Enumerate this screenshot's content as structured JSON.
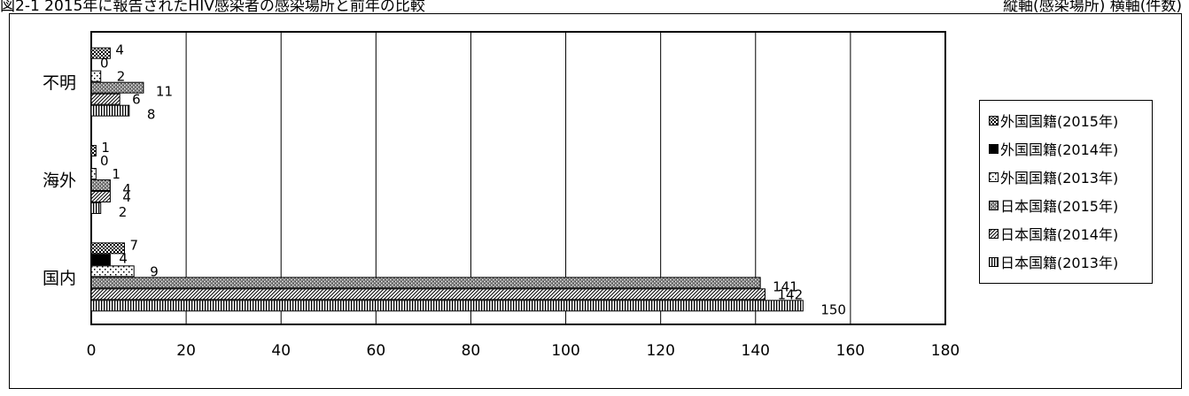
{
  "header": {
    "left": "図2-1 2015年に報告されたHIV感染者の感染場所と前年の比較",
    "right": "縦軸(感染場所) 横軸(件数)"
  },
  "chart_data": {
    "type": "bar",
    "orientation": "horizontal",
    "categories": [
      "不明",
      "海外",
      "国内"
    ],
    "series": [
      {
        "name": "外国国籍(2015年)",
        "values": [
          4,
          1,
          7
        ],
        "pattern": "crosshatch"
      },
      {
        "name": "外国国籍(2014年)",
        "values": [
          0,
          0,
          4
        ],
        "pattern": "solid-black"
      },
      {
        "name": "外国国籍(2013年)",
        "values": [
          2,
          1,
          9
        ],
        "pattern": "dotted"
      },
      {
        "name": "日本国籍(2015年)",
        "values": [
          11,
          4,
          141
        ],
        "pattern": "gray-stipple"
      },
      {
        "name": "日本国籍(2014年)",
        "values": [
          6,
          4,
          142
        ],
        "pattern": "diagonal"
      },
      {
        "name": "日本国籍(2013年)",
        "values": [
          8,
          2,
          150
        ],
        "pattern": "vertical"
      }
    ],
    "xlim": [
      0,
      180
    ],
    "xticks": [
      0,
      20,
      40,
      60,
      80,
      100,
      120,
      140,
      160,
      180
    ],
    "grid": true,
    "legend_position": "right"
  }
}
